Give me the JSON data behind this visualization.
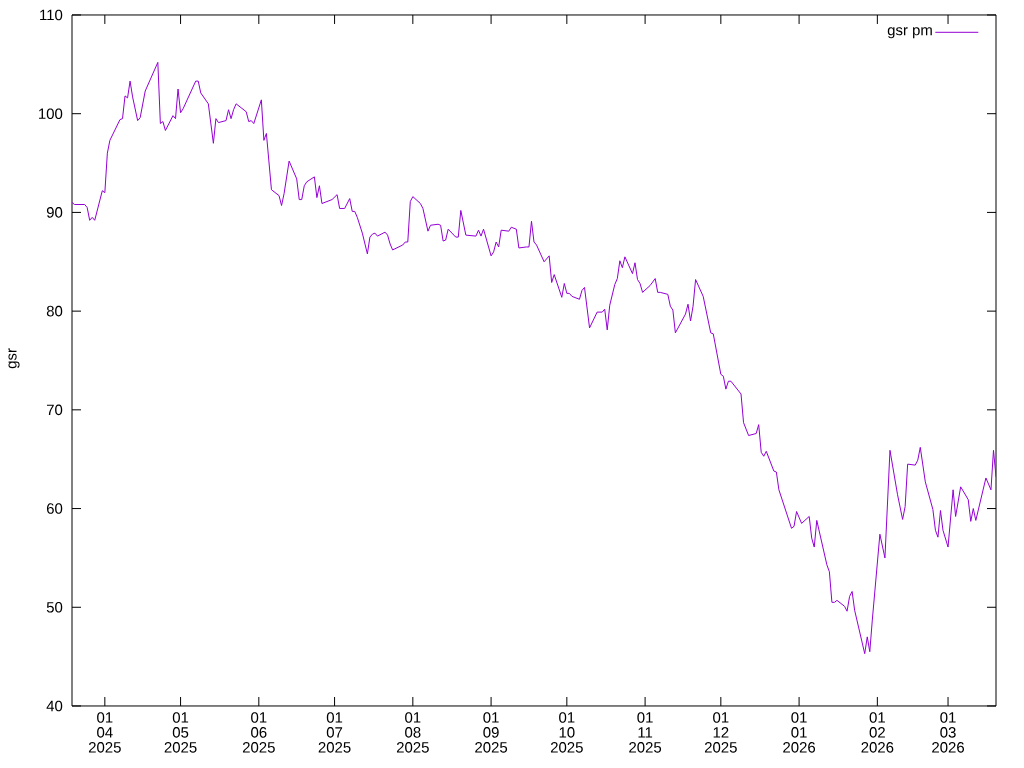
{
  "chart_data": {
    "type": "line",
    "ylabel": "gsr",
    "legend": "top right",
    "xlim": [
      "2025-03-19",
      "2026-03-20"
    ],
    "ylim": [
      40,
      110
    ],
    "yticks": [
      40,
      50,
      60,
      70,
      80,
      90,
      100,
      110
    ],
    "xticks": [
      {
        "value": "2025-04-01",
        "label": "01 04 2025"
      },
      {
        "value": "2025-05-01",
        "label": "01 05 2025"
      },
      {
        "value": "2025-06-01",
        "label": "01 06 2025"
      },
      {
        "value": "2025-07-01",
        "label": "01 07 2025"
      },
      {
        "value": "2025-08-01",
        "label": "01 08 2025"
      },
      {
        "value": "2025-09-01",
        "label": "01 09 2025"
      },
      {
        "value": "2025-10-01",
        "label": "01 10 2025"
      },
      {
        "value": "2025-11-01",
        "label": "01 11 2025"
      },
      {
        "value": "2025-12-01",
        "label": "01 12 2025"
      },
      {
        "value": "2026-01-01",
        "label": "01 01 2026"
      },
      {
        "value": "2026-02-01",
        "label": "01 02 2026"
      },
      {
        "value": "2026-03-01",
        "label": "01 03 2026"
      }
    ],
    "x": [
      "2025-03-19",
      "2025-03-20",
      "2025-03-24",
      "2025-03-25",
      "2025-03-26",
      "2025-03-27",
      "2025-03-28",
      "2025-03-31",
      "2025-04-01",
      "2025-04-02",
      "2025-04-03",
      "2025-04-07",
      "2025-04-08",
      "2025-04-09",
      "2025-04-10",
      "2025-04-11",
      "2025-04-12",
      "2025-04-14",
      "2025-04-15",
      "2025-04-17",
      "2025-04-22",
      "2025-04-23",
      "2025-04-24",
      "2025-04-25",
      "2025-04-28",
      "2025-04-29",
      "2025-04-30",
      "2025-05-01",
      "2025-05-02",
      "2025-05-07",
      "2025-05-08",
      "2025-05-09",
      "2025-05-12",
      "2025-05-14",
      "2025-05-15",
      "2025-05-16",
      "2025-05-19",
      "2025-05-20",
      "2025-05-21",
      "2025-05-22",
      "2025-05-23",
      "2025-05-27",
      "2025-05-28",
      "2025-05-29",
      "2025-05-30",
      "2025-06-02",
      "2025-06-03",
      "2025-06-04",
      "2025-06-06",
      "2025-06-09",
      "2025-06-10",
      "2025-06-11",
      "2025-06-13",
      "2025-06-16",
      "2025-06-17",
      "2025-06-18",
      "2025-06-19",
      "2025-06-20",
      "2025-06-23",
      "2025-06-24",
      "2025-06-25",
      "2025-06-26",
      "2025-06-30",
      "2025-07-02",
      "2025-07-03",
      "2025-07-05",
      "2025-07-07",
      "2025-07-08",
      "2025-07-09",
      "2025-07-10",
      "2025-07-12",
      "2025-07-14",
      "2025-07-15",
      "2025-07-16",
      "2025-07-17",
      "2025-07-18",
      "2025-07-21",
      "2025-07-22",
      "2025-07-23",
      "2025-07-24",
      "2025-07-28",
      "2025-07-29",
      "2025-07-30",
      "2025-07-31",
      "2025-08-01",
      "2025-08-04",
      "2025-08-05",
      "2025-08-07",
      "2025-08-08",
      "2025-08-11",
      "2025-08-12",
      "2025-08-13",
      "2025-08-14",
      "2025-08-15",
      "2025-08-18",
      "2025-08-19",
      "2025-08-20",
      "2025-08-22",
      "2025-08-26",
      "2025-08-27",
      "2025-08-28",
      "2025-08-29",
      "2025-09-01",
      "2025-09-02",
      "2025-09-03",
      "2025-09-04",
      "2025-09-05",
      "2025-09-08",
      "2025-09-09",
      "2025-09-11",
      "2025-09-12",
      "2025-09-15",
      "2025-09-16",
      "2025-09-17",
      "2025-09-18",
      "2025-09-19",
      "2025-09-22",
      "2025-09-24",
      "2025-09-25",
      "2025-09-26",
      "2025-09-29",
      "2025-09-30",
      "2025-10-01",
      "2025-10-02",
      "2025-10-03",
      "2025-10-06",
      "2025-10-07",
      "2025-10-08",
      "2025-10-10",
      "2025-10-13",
      "2025-10-15",
      "2025-10-16",
      "2025-10-17",
      "2025-10-18",
      "2025-10-20",
      "2025-10-21",
      "2025-10-22",
      "2025-10-23",
      "2025-10-24",
      "2025-10-27",
      "2025-10-28",
      "2025-10-29",
      "2025-10-30",
      "2025-10-31",
      "2025-11-03",
      "2025-11-05",
      "2025-11-06",
      "2025-11-07",
      "2025-11-10",
      "2025-11-11",
      "2025-11-12",
      "2025-11-13",
      "2025-11-17",
      "2025-11-18",
      "2025-11-19",
      "2025-11-20",
      "2025-11-21",
      "2025-11-24",
      "2025-11-27",
      "2025-11-28",
      "2025-12-01",
      "2025-12-02",
      "2025-12-03",
      "2025-12-04",
      "2025-12-05",
      "2025-12-09",
      "2025-12-10",
      "2025-12-12",
      "2025-12-15",
      "2025-12-16",
      "2025-12-17",
      "2025-12-18",
      "2025-12-19",
      "2025-12-22",
      "2025-12-23",
      "2025-12-24",
      "2025-12-29",
      "2025-12-30",
      "2025-12-31",
      "2026-01-02",
      "2026-01-05",
      "2026-01-06",
      "2026-01-07",
      "2026-01-08",
      "2026-01-12",
      "2026-01-13",
      "2026-01-14",
      "2026-01-15",
      "2026-01-16",
      "2026-01-19",
      "2026-01-20",
      "2026-01-21",
      "2026-01-22",
      "2026-01-23",
      "2026-01-27",
      "2026-01-28",
      "2026-01-29",
      "2026-01-30",
      "2026-02-02",
      "2026-02-04",
      "2026-02-06",
      "2026-02-09",
      "2026-02-11",
      "2026-02-12",
      "2026-02-13",
      "2026-02-16",
      "2026-02-17",
      "2026-02-18",
      "2026-02-20",
      "2026-02-23",
      "2026-02-24",
      "2026-02-25",
      "2026-02-26",
      "2026-02-27",
      "2026-03-01",
      "2026-03-03",
      "2026-03-04",
      "2026-03-06",
      "2026-03-09",
      "2026-03-10",
      "2026-03-11",
      "2026-03-12",
      "2026-03-16",
      "2026-03-18",
      "2026-03-19",
      "2026-03-20"
    ],
    "series": [
      {
        "name": "gsr pm",
        "color": "#9400d3",
        "values": [
          91.0,
          90.8,
          90.8,
          90.5,
          89.2,
          89.5,
          89.2,
          92.2,
          92.0,
          96.0,
          97.3,
          99.4,
          99.5,
          101.8,
          101.6,
          103.3,
          101.7,
          99.3,
          99.6,
          102.3,
          105.2,
          99.0,
          99.2,
          98.3,
          99.8,
          99.5,
          102.5,
          100.1,
          100.5,
          103.3,
          103.3,
          102.1,
          101.0,
          97.0,
          99.5,
          99.1,
          99.3,
          100.4,
          99.5,
          100.4,
          101.0,
          100.2,
          99.2,
          99.3,
          99.0,
          101.4,
          97.3,
          98.0,
          92.3,
          91.7,
          90.7,
          91.9,
          95.2,
          93.4,
          91.3,
          91.3,
          92.7,
          93.1,
          93.6,
          91.5,
          92.7,
          90.9,
          91.3,
          91.8,
          90.4,
          90.4,
          91.4,
          90.1,
          90.1,
          89.5,
          87.9,
          85.8,
          87.5,
          87.8,
          87.9,
          87.6,
          88.0,
          87.7,
          86.8,
          86.2,
          86.7,
          87.0,
          87.0,
          91.1,
          91.6,
          90.9,
          90.4,
          88.1,
          88.7,
          88.8,
          88.7,
          87.1,
          87.2,
          88.3,
          87.5,
          87.5,
          90.2,
          87.7,
          87.6,
          88.2,
          87.6,
          88.3,
          85.6,
          86.0,
          87.0,
          86.5,
          88.2,
          88.1,
          88.5,
          88.3,
          86.4,
          86.5,
          86.5,
          89.1,
          87.0,
          86.7,
          85.0,
          85.6,
          82.9,
          83.7,
          81.4,
          82.8,
          81.8,
          81.8,
          81.5,
          81.2,
          82.1,
          82.4,
          78.3,
          79.9,
          79.9,
          80.2,
          78.1,
          80.6,
          82.7,
          83.3,
          85.1,
          84.4,
          85.5,
          83.8,
          84.9,
          83.2,
          82.8,
          81.9,
          82.6,
          83.3,
          81.9,
          81.9,
          81.7,
          80.5,
          80.1,
          77.8,
          79.7,
          80.7,
          79.0,
          80.5,
          83.2,
          81.5,
          77.8,
          77.7,
          73.6,
          73.4,
          72.1,
          72.9,
          72.9,
          71.6,
          68.7,
          67.4,
          67.6,
          68.5,
          65.7,
          65.3,
          65.8,
          63.8,
          63.7,
          61.9,
          58.0,
          58.2,
          59.7,
          58.5,
          59.2,
          57.0,
          56.1,
          58.8,
          54.3,
          53.6,
          50.5,
          50.5,
          50.7,
          50.1,
          49.6,
          51.1,
          51.6,
          49.7,
          45.3,
          47.0,
          45.5,
          48.7,
          57.4,
          55.0,
          65.9,
          61.4,
          58.9,
          60.2,
          64.5,
          64.4,
          64.9,
          66.2,
          62.7,
          59.9,
          57.8,
          57.1,
          59.8,
          57.8,
          56.1,
          61.9,
          59.2,
          62.2,
          60.9,
          58.7,
          60.0,
          58.8,
          63.1,
          61.9,
          65.9,
          63.2
        ]
      }
    ]
  }
}
